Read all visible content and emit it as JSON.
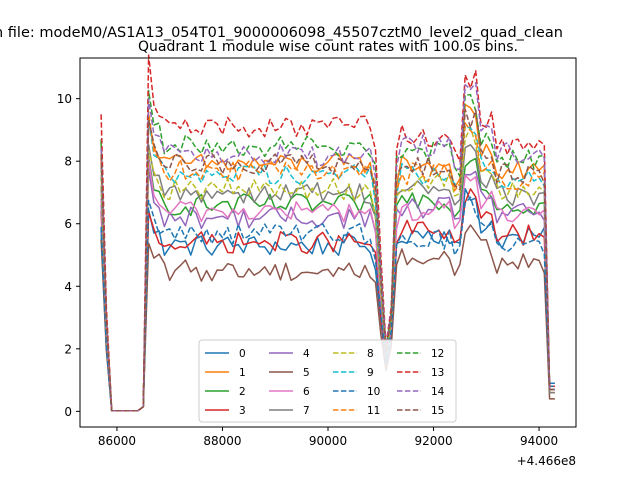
{
  "suptitle": "n file: modeM0/AS1A13_054T01_9000006098_45507cztM0_level2_quad_clean",
  "chart_data": {
    "type": "line",
    "title": "Quadrant 1 module wise count rates with 100.0s bins.",
    "xlabel": "",
    "ylabel": "",
    "x_offset_label": "+4.466e8",
    "xlim": [
      85300,
      94700
    ],
    "ylim": [
      -0.5,
      11.3
    ],
    "xticks": [
      86000,
      88000,
      90000,
      92000,
      94000
    ],
    "xtick_labels": [
      "86000",
      "88000",
      "90000",
      "92000",
      "94000"
    ],
    "yticks": [
      0,
      2,
      4,
      6,
      8,
      10
    ],
    "ytick_labels": [
      "0",
      "2",
      "4",
      "6",
      "8",
      "10"
    ],
    "grid": false,
    "legend_position": "lower-center",
    "x_range": [
      85700,
      94300
    ],
    "bin_seconds": 100,
    "series": [
      {
        "name": "0",
        "color": "#1f77b4",
        "style": "solid",
        "level": 5.3,
        "start": 5.8,
        "dip": 1.5,
        "end": 0.9,
        "plateau2": 5.7
      },
      {
        "name": "1",
        "color": "#ff7f0e",
        "style": "solid",
        "level": 7.9,
        "start": 8.0,
        "dip": 1.8,
        "end": 0.6,
        "plateau2": 7.9
      },
      {
        "name": "2",
        "color": "#2ca02c",
        "style": "solid",
        "level": 6.6,
        "start": 8.6,
        "dip": 1.7,
        "end": 0.7,
        "plateau2": 6.8
      },
      {
        "name": "3",
        "color": "#d62728",
        "style": "solid",
        "level": 5.4,
        "start": 6.4,
        "dip": 1.6,
        "end": 0.8,
        "plateau2": 5.8
      },
      {
        "name": "4",
        "color": "#9467bd",
        "style": "solid",
        "level": 6.2,
        "start": 6.6,
        "dip": 1.6,
        "end": 0.7,
        "plateau2": 6.5
      },
      {
        "name": "5",
        "color": "#8c564b",
        "style": "solid",
        "level": 4.5,
        "start": 5.5,
        "dip": 1.3,
        "end": 0.4,
        "plateau2": 4.9
      },
      {
        "name": "6",
        "color": "#e377c2",
        "style": "solid",
        "level": 6.4,
        "start": 6.8,
        "dip": 1.7,
        "end": 0.7,
        "plateau2": 6.4
      },
      {
        "name": "7",
        "color": "#7f7f7f",
        "style": "solid",
        "level": 7.0,
        "start": 7.2,
        "dip": 1.8,
        "end": 0.6,
        "plateau2": 7.1
      },
      {
        "name": "8",
        "color": "#bcbd22",
        "style": "dashed",
        "level": 7.1,
        "start": 7.5,
        "dip": 1.8,
        "end": 0.7,
        "plateau2": 7.3
      },
      {
        "name": "9",
        "color": "#17becf",
        "style": "dashed",
        "level": 7.6,
        "start": 7.8,
        "dip": 1.9,
        "end": 0.7,
        "plateau2": 7.6
      },
      {
        "name": "10",
        "color": "#1f77b4",
        "style": "dashed",
        "level": 5.7,
        "start": 5.9,
        "dip": 1.6,
        "end": 0.8,
        "plateau2": 5.5
      },
      {
        "name": "11",
        "color": "#ff7f0e",
        "style": "dashed",
        "level": 7.7,
        "start": 8.1,
        "dip": 1.9,
        "end": 0.7,
        "plateau2": 7.6
      },
      {
        "name": "12",
        "color": "#2ca02c",
        "style": "dashed",
        "level": 8.5,
        "start": 8.7,
        "dip": 2.0,
        "end": 0.7,
        "plateau2": 8.3
      },
      {
        "name": "13",
        "color": "#d62728",
        "style": "dashed",
        "level": 9.1,
        "start": 9.5,
        "dip": 2.1,
        "end": 0.8,
        "plateau2": 8.8
      },
      {
        "name": "14",
        "color": "#9467bd",
        "style": "dashed",
        "level": 8.2,
        "start": 8.4,
        "dip": 2.0,
        "end": 0.7,
        "plateau2": 8.5
      },
      {
        "name": "15",
        "color": "#8c564b",
        "style": "dashed",
        "level": 7.9,
        "start": 8.2,
        "dip": 1.9,
        "end": 0.7,
        "plateau2": 7.8
      }
    ]
  }
}
